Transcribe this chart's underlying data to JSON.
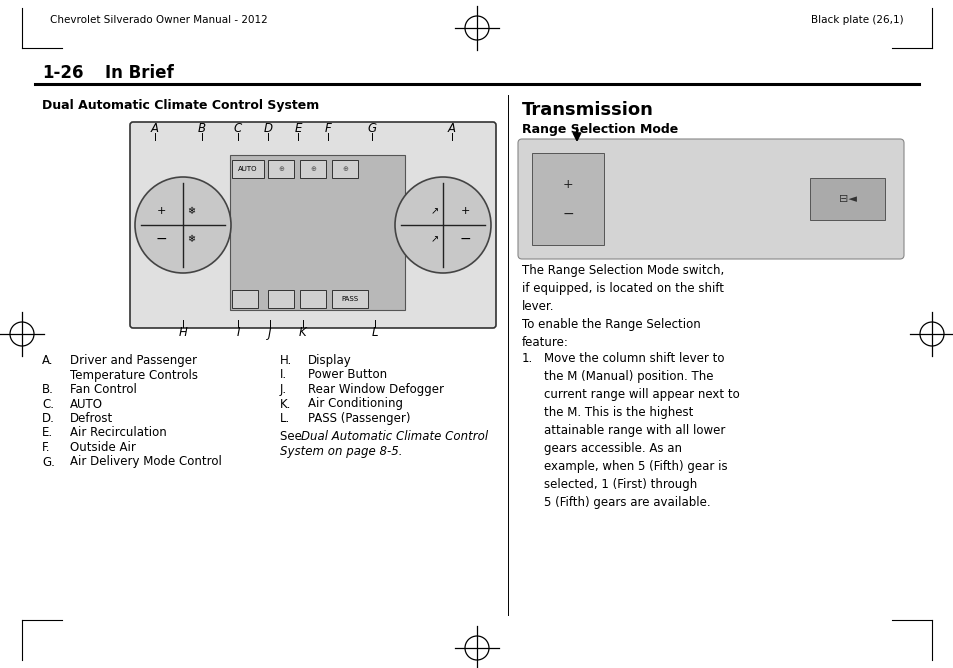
{
  "bg_color": "#ffffff",
  "header_left": "Chevrolet Silverado Owner Manual - 2012",
  "header_right": "Black plate (26,1)",
  "left_section_title": "Dual Automatic Climate Control System",
  "right_section_title": "Transmission",
  "right_subsection": "Range Selection Mode",
  "left_list": [
    [
      "A.",
      "Driver and Passenger\nTemperature Controls"
    ],
    [
      "B.",
      "Fan Control"
    ],
    [
      "C.",
      "AUTO"
    ],
    [
      "D.",
      "Defrost"
    ],
    [
      "E.",
      "Air Recirculation"
    ],
    [
      "F.",
      "Outside Air"
    ],
    [
      "G.",
      "Air Delivery Mode Control"
    ]
  ],
  "right_list_h": [
    [
      "H.",
      "Display"
    ],
    [
      "I.",
      "Power Button"
    ],
    [
      "J.",
      "Rear Window Defogger"
    ],
    [
      "K.",
      "Air Conditioning"
    ],
    [
      "L.",
      "PASS (Passenger)"
    ]
  ],
  "range_text1": "The Range Selection Mode switch,\nif equipped, is located on the shift\nlever.",
  "range_text2": "To enable the Range Selection\nfeature:",
  "range_item1": "Move the column shift lever to\nthe M (Manual) position. The\ncurrent range will appear next to\nthe M. This is the highest\nattainable range with all lower\ngears accessible. As an\nexample, when 5 (Fifth) gear is\nselected, 1 (First) through\n5 (Fifth) gears are available.",
  "diagram_labels_top": [
    "A",
    "B",
    "C",
    "D",
    "E",
    "F",
    "G",
    "A"
  ],
  "diagram_labels_bottom": [
    "H",
    "I",
    "J",
    "K",
    "L"
  ]
}
